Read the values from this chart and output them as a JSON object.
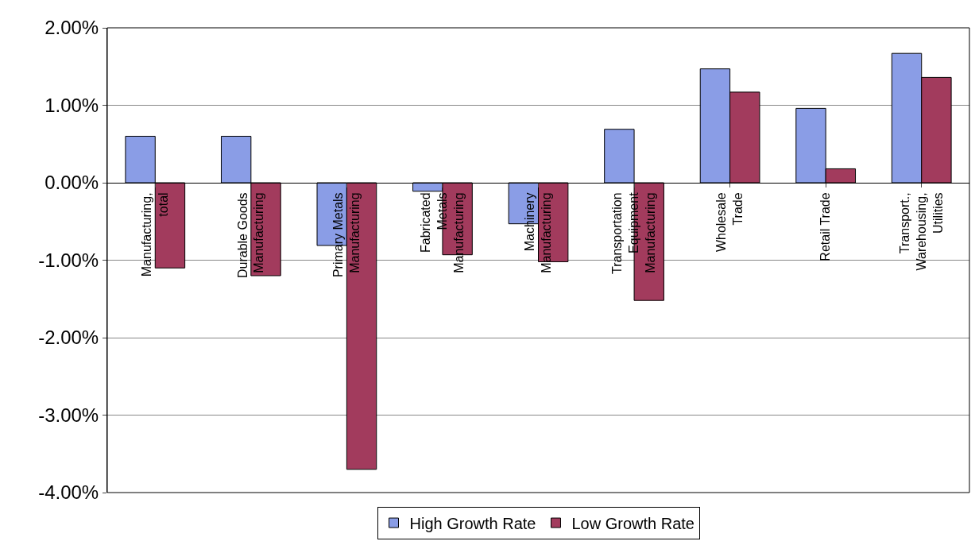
{
  "chart_data": {
    "type": "bar",
    "categories": [
      "Manufacturing, total",
      "Durable Goods Manufacturing",
      "Primary Metals Manufacturing",
      "Fabricated Metals Manufacturing",
      "Machinery Manufacturing",
      "Transportation Equipment Manufacturing",
      "Wholesale Trade",
      "Retail Trade",
      "Transport., Warehousing, Utilities"
    ],
    "series": [
      {
        "name": "High Growth Rate",
        "color": "#8a9de6",
        "values": [
          0.6,
          0.6,
          -0.81,
          -0.11,
          -0.53,
          0.69,
          1.47,
          0.96,
          1.67
        ]
      },
      {
        "name": "Low Growth Rate",
        "color": "#a23b5d",
        "values": [
          -1.1,
          -1.2,
          -3.7,
          -0.93,
          -1.02,
          -1.52,
          1.17,
          0.18,
          1.36
        ]
      }
    ],
    "ylim": [
      -4,
      2
    ],
    "yticks": [
      {
        "value": -4,
        "label": "-4.00%"
      },
      {
        "value": -3,
        "label": "-3.00%"
      },
      {
        "value": -2,
        "label": "-2.00%"
      },
      {
        "value": -1,
        "label": "-1.00%"
      },
      {
        "value": 0,
        "label": "0.00%"
      },
      {
        "value": 1,
        "label": "1.00%"
      },
      {
        "value": 2,
        "label": "2.00%"
      }
    ],
    "grid": "y",
    "legend": "bottom"
  }
}
